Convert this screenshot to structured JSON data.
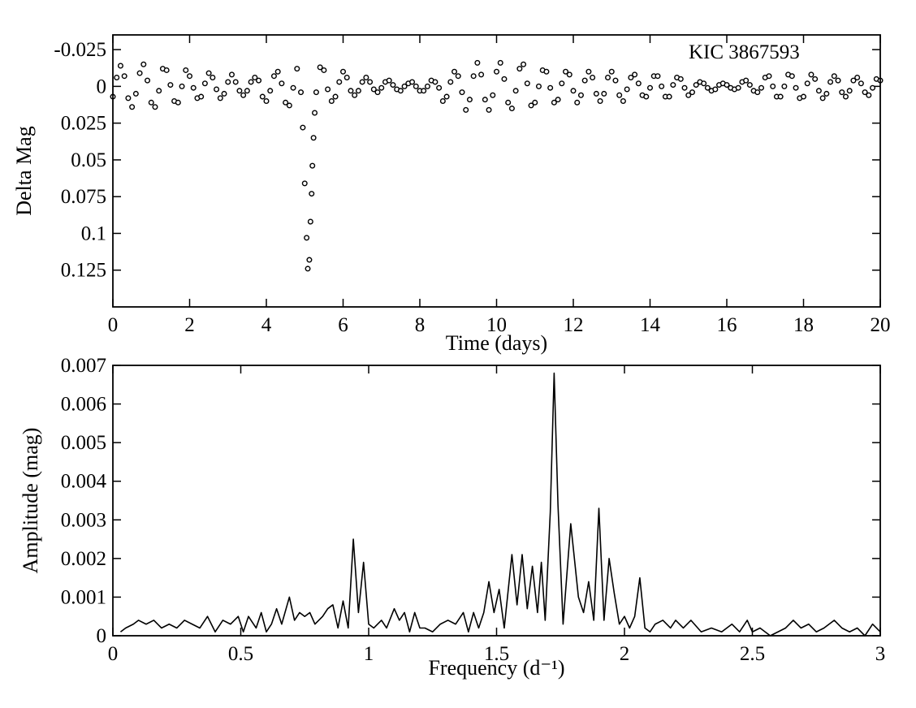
{
  "chart_data": [
    {
      "type": "scatter",
      "xlabel": "Time (days)",
      "ylabel": "Delta Mag",
      "annotation": "KIC 3867593",
      "color": "#000000",
      "y_inverted": true,
      "xlim": [
        0,
        20
      ],
      "xticks": [
        0,
        2,
        4,
        6,
        8,
        10,
        12,
        14,
        16,
        18,
        20
      ],
      "ylim": [
        -0.035,
        0.15
      ],
      "yticks": [
        -0.025,
        0,
        0.025,
        0.05,
        0.075,
        0.1,
        0.125
      ],
      "x": [
        0,
        0.1,
        0.2,
        0.3,
        0.4,
        0.5,
        0.6,
        0.7,
        0.8,
        0.9,
        1,
        1.1,
        1.2,
        1.3,
        1.4,
        1.5,
        1.6,
        1.7,
        1.8,
        1.9,
        2,
        2.1,
        2.2,
        2.3,
        2.4,
        2.5,
        2.6,
        2.7,
        2.8,
        2.9,
        3,
        3.1,
        3.2,
        3.3,
        3.4,
        3.5,
        3.6,
        3.7,
        3.8,
        3.9,
        4,
        4.1,
        4.2,
        4.3,
        4.4,
        4.5,
        4.6,
        4.7,
        4.8,
        4.9,
        4.95,
        5,
        5.05,
        5.08,
        5.12,
        5.15,
        5.18,
        5.2,
        5.23,
        5.26,
        5.3,
        5.4,
        5.5,
        5.6,
        5.7,
        5.8,
        5.9,
        6,
        6.1,
        6.2,
        6.3,
        6.4,
        6.5,
        6.6,
        6.7,
        6.8,
        6.9,
        7,
        7.1,
        7.2,
        7.3,
        7.4,
        7.5,
        7.6,
        7.7,
        7.8,
        7.9,
        8,
        8.1,
        8.2,
        8.3,
        8.4,
        8.5,
        8.6,
        8.7,
        8.8,
        8.9,
        9,
        9.1,
        9.2,
        9.3,
        9.4,
        9.5,
        9.6,
        9.7,
        9.8,
        9.9,
        10,
        10.1,
        10.2,
        10.3,
        10.4,
        10.5,
        10.6,
        10.7,
        10.8,
        10.9,
        11,
        11.1,
        11.2,
        11.3,
        11.4,
        11.5,
        11.6,
        11.7,
        11.8,
        11.9,
        12,
        12.1,
        12.2,
        12.3,
        12.4,
        12.5,
        12.6,
        12.7,
        12.8,
        12.9,
        13,
        13.1,
        13.2,
        13.3,
        13.4,
        13.5,
        13.6,
        13.7,
        13.8,
        13.9,
        14,
        14.1,
        14.2,
        14.3,
        14.4,
        14.5,
        14.6,
        14.7,
        14.8,
        14.9,
        15,
        15.1,
        15.2,
        15.3,
        15.4,
        15.5,
        15.6,
        15.7,
        15.8,
        15.9,
        16,
        16.1,
        16.2,
        16.3,
        16.4,
        16.5,
        16.6,
        16.7,
        16.8,
        16.9,
        17,
        17.1,
        17.2,
        17.3,
        17.4,
        17.5,
        17.6,
        17.7,
        17.8,
        17.9,
        18,
        18.1,
        18.2,
        18.3,
        18.4,
        18.5,
        18.6,
        18.7,
        18.8,
        18.9,
        19,
        19.1,
        19.2,
        19.3,
        19.4,
        19.5,
        19.6,
        19.7,
        19.8,
        19.9,
        20
      ],
      "values": [
        0.007,
        -0.006,
        -0.014,
        -0.007,
        0.008,
        0.014,
        0.005,
        -0.009,
        -0.015,
        -0.004,
        0.011,
        0.014,
        0.003,
        -0.012,
        -0.011,
        -0.001,
        0.01,
        0.011,
        0,
        -0.011,
        -0.007,
        0.001,
        0.008,
        0.007,
        -0.002,
        -0.009,
        -0.006,
        0.002,
        0.008,
        0.005,
        -0.003,
        -0.008,
        -0.003,
        0.003,
        0.006,
        0.003,
        -0.003,
        -0.006,
        -0.004,
        0.007,
        0.01,
        0.003,
        -0.007,
        -0.01,
        -0.002,
        0.011,
        0.013,
        0.001,
        -0.012,
        0.004,
        0.028,
        0.066,
        0.103,
        0.124,
        0.118,
        0.092,
        0.073,
        0.054,
        0.035,
        0.018,
        0.004,
        -0.013,
        -0.011,
        0.002,
        0.01,
        0.007,
        -0.003,
        -0.01,
        -0.006,
        0.003,
        0.006,
        0.003,
        -0.003,
        -0.006,
        -0.003,
        0.002,
        0.004,
        0.001,
        -0.003,
        -0.004,
        -0.001,
        0.002,
        0.003,
        0,
        -0.002,
        -0.003,
        0,
        0.003,
        0.003,
        0,
        -0.004,
        -0.003,
        0.001,
        0.01,
        0.007,
        -0.003,
        -0.01,
        -0.007,
        0.004,
        0.016,
        0.009,
        -0.007,
        -0.016,
        -0.008,
        0.009,
        0.016,
        0.006,
        -0.01,
        -0.016,
        -0.005,
        0.011,
        0.015,
        0.003,
        -0.012,
        -0.015,
        -0.002,
        0.013,
        0.011,
        0,
        -0.011,
        -0.01,
        0.001,
        0.011,
        0.009,
        -0.002,
        -0.01,
        -0.008,
        0.003,
        0.011,
        0.006,
        -0.004,
        -0.01,
        -0.006,
        0.005,
        0.01,
        0.005,
        -0.006,
        -0.01,
        -0.004,
        0.006,
        0.01,
        0.002,
        -0.006,
        -0.008,
        -0.002,
        0.006,
        0.007,
        0.001,
        -0.007,
        -0.007,
        0,
        0.007,
        0.007,
        -0.001,
        -0.006,
        -0.005,
        0.001,
        0.006,
        0.004,
        -0.001,
        -0.003,
        -0.002,
        0.001,
        0.003,
        0.002,
        -0.001,
        -0.002,
        -0.001,
        0.001,
        0.002,
        0.001,
        -0.003,
        -0.004,
        -0.001,
        0.003,
        0.004,
        0.001,
        -0.006,
        -0.007,
        0,
        0.007,
        0.007,
        0,
        -0.008,
        -0.007,
        0.001,
        0.008,
        0.007,
        -0.002,
        -0.008,
        -0.005,
        0.003,
        0.008,
        0.005,
        -0.003,
        -0.007,
        -0.004,
        0.004,
        0.007,
        0.003,
        -0.004,
        -0.006,
        -0.002,
        0.004,
        0.006,
        0.001,
        -0.005,
        -0.004
      ]
    },
    {
      "type": "line",
      "xlabel": "Frequency (d⁻¹)",
      "ylabel": "Amplitude (mag)",
      "color": "#000000",
      "xlim": [
        0,
        3
      ],
      "xticks": [
        0,
        0.5,
        1,
        1.5,
        2,
        2.5,
        3
      ],
      "ylim": [
        0,
        0.007
      ],
      "yticks": [
        0,
        0.001,
        0.002,
        0.003,
        0.004,
        0.005,
        0.006,
        0.007
      ],
      "x": [
        0.03,
        0.05,
        0.08,
        0.1,
        0.13,
        0.16,
        0.19,
        0.22,
        0.25,
        0.28,
        0.31,
        0.34,
        0.37,
        0.4,
        0.43,
        0.46,
        0.49,
        0.51,
        0.53,
        0.56,
        0.58,
        0.6,
        0.62,
        0.64,
        0.66,
        0.69,
        0.71,
        0.73,
        0.75,
        0.77,
        0.79,
        0.82,
        0.84,
        0.86,
        0.88,
        0.9,
        0.92,
        0.94,
        0.96,
        0.98,
        1,
        1.02,
        1.05,
        1.07,
        1.1,
        1.12,
        1.14,
        1.16,
        1.18,
        1.2,
        1.22,
        1.25,
        1.28,
        1.31,
        1.34,
        1.37,
        1.39,
        1.41,
        1.43,
        1.45,
        1.47,
        1.49,
        1.51,
        1.53,
        1.56,
        1.58,
        1.6,
        1.62,
        1.64,
        1.66,
        1.675,
        1.69,
        1.71,
        1.725,
        1.74,
        1.76,
        1.79,
        1.82,
        1.84,
        1.86,
        1.88,
        1.9,
        1.92,
        1.94,
        1.96,
        1.98,
        2,
        2.02,
        2.04,
        2.06,
        2.08,
        2.1,
        2.12,
        2.15,
        2.18,
        2.2,
        2.23,
        2.26,
        2.3,
        2.34,
        2.38,
        2.42,
        2.45,
        2.48,
        2.5,
        2.53,
        2.57,
        2.6,
        2.63,
        2.66,
        2.69,
        2.72,
        2.75,
        2.78,
        2.82,
        2.85,
        2.88,
        2.91,
        2.94,
        2.97,
        3
      ],
      "values": [
        0.0001,
        0.0002,
        0.0003,
        0.0004,
        0.0003,
        0.0004,
        0.0002,
        0.0003,
        0.0002,
        0.0004,
        0.0003,
        0.0002,
        0.0005,
        0.0001,
        0.0004,
        0.0003,
        0.0005,
        0.0001,
        0.0005,
        0.0002,
        0.0006,
        0.0001,
        0.0003,
        0.0007,
        0.0003,
        0.001,
        0.0004,
        0.0006,
        0.0005,
        0.0006,
        0.0003,
        0.0005,
        0.0007,
        0.0008,
        0.0002,
        0.0009,
        0.0002,
        0.0025,
        0.0006,
        0.0019,
        0.0003,
        0.0002,
        0.0004,
        0.0002,
        0.0007,
        0.0004,
        0.0006,
        0.0001,
        0.0006,
        0.0002,
        0.0002,
        0.0001,
        0.0003,
        0.0004,
        0.0003,
        0.0006,
        0.0001,
        0.0006,
        0.0002,
        0.0006,
        0.0014,
        0.0006,
        0.0012,
        0.0002,
        0.0021,
        0.0008,
        0.0021,
        0.0007,
        0.0018,
        0.0006,
        0.0019,
        0.0004,
        0.0032,
        0.0068,
        0.0034,
        0.0003,
        0.0029,
        0.001,
        0.0006,
        0.0014,
        0.0004,
        0.0033,
        0.0004,
        0.002,
        0.0011,
        0.0003,
        0.0005,
        0.0002,
        0.0005,
        0.0015,
        0.0002,
        0.0001,
        0.0003,
        0.0004,
        0.0002,
        0.0004,
        0.0002,
        0.0004,
        0.0001,
        0.0002,
        0.0001,
        0.0003,
        0.0001,
        0.0004,
        0.0001,
        0.0002,
        0,
        0.0001,
        0.0002,
        0.0004,
        0.0002,
        0.0003,
        0.0001,
        0.0002,
        0.0004,
        0.0002,
        0.0001,
        0.0002,
        0,
        0.0003,
        0.0001
      ]
    }
  ]
}
